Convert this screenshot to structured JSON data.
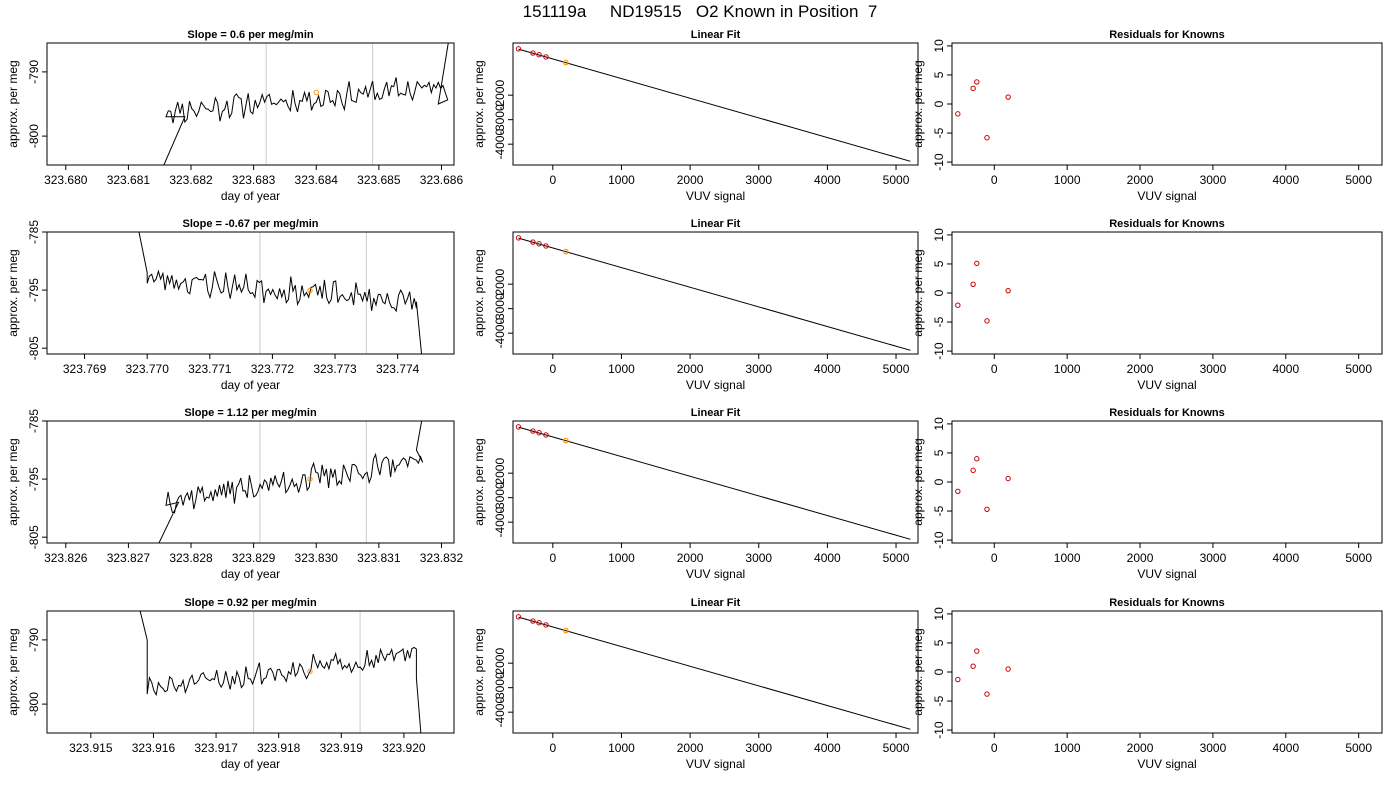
{
  "figure": {
    "title": "151119a     ND19515   O2 Known in Position  7",
    "colors": {
      "trace": "#000000",
      "axis": "#000000",
      "cycle_line": "#cccccc",
      "known_point": "#cc0000",
      "current_point": "#ff9900"
    }
  },
  "chart_data": [
    {
      "type": "line",
      "row": 0,
      "role": "time-series",
      "title": "Slope =  0.6  per meg/min",
      "xlabel": "day of year",
      "ylabel": "approx. per meg",
      "xlim": [
        323.6797,
        323.6862
      ],
      "ylim": [
        -804.5,
        -785.5
      ],
      "xticks": [
        323.68,
        323.681,
        323.682,
        323.683,
        323.684,
        323.685,
        323.686
      ],
      "xtick_labels": [
        "323.680",
        "323.681",
        "323.682",
        "323.683",
        "323.684",
        "323.685",
        "323.686"
      ],
      "yticks": [
        -790,
        -800
      ],
      "ytick_labels": [
        "-790",
        "-800"
      ],
      "vlines": [
        323.6832,
        323.6849
      ],
      "highlight_point": {
        "x": 323.684,
        "y": -793.2
      },
      "trace": {
        "start": 323.6816,
        "end": 323.6861,
        "level": -794.2,
        "slope": 0.6,
        "amplitude": 1.6,
        "seed": 11,
        "head": [
          [
            323.6815,
            -806.0
          ],
          [
            323.6819,
            -797.0
          ]
        ],
        "tail": [
          [
            323.68595,
            -795.0
          ],
          [
            323.68615,
            -783.0
          ]
        ]
      }
    },
    {
      "type": "line",
      "row": 1,
      "role": "time-series",
      "title": "Slope =  -0.67  per meg/min",
      "xlabel": "day of year",
      "ylabel": "approx. per meg",
      "xlim": [
        323.7684,
        323.7749
      ],
      "ylim": [
        -806,
        -785
      ],
      "xticks": [
        323.769,
        323.77,
        323.771,
        323.772,
        323.773,
        323.774
      ],
      "xtick_labels": [
        "323.769",
        "323.770",
        "323.771",
        "323.772",
        "323.773",
        "323.774"
      ],
      "yticks": [
        -785,
        -795,
        -805
      ],
      "ytick_labels": [
        "-785",
        "-795",
        "-805"
      ],
      "vlines": [
        323.7718,
        323.7735
      ],
      "highlight_point": {
        "x": 323.7726,
        "y": -795.1
      },
      "trace": {
        "start": 323.77,
        "end": 323.7743,
        "level": -795.0,
        "slope": -0.67,
        "amplitude": 1.8,
        "seed": 23,
        "head": [
          [
            323.76985,
            -784.0
          ],
          [
            323.77,
            -792.0
          ]
        ],
        "tail": [
          [
            323.7743,
            -797.0
          ],
          [
            323.7744,
            -808.0
          ]
        ]
      }
    },
    {
      "type": "line",
      "row": 2,
      "role": "time-series",
      "title": "Slope =  1.12  per meg/min",
      "xlabel": "day of year",
      "ylabel": "approx. per meg",
      "xlim": [
        323.8257,
        323.8322
      ],
      "ylim": [
        -806,
        -785
      ],
      "xticks": [
        323.826,
        323.827,
        323.828,
        323.829,
        323.83,
        323.831,
        323.832
      ],
      "xtick_labels": [
        "323.826",
        "323.827",
        "323.828",
        "323.829",
        "323.830",
        "323.831",
        "323.832"
      ],
      "yticks": [
        -785,
        -795,
        -805
      ],
      "ytick_labels": [
        "-785",
        "-795",
        "-805"
      ],
      "vlines": [
        323.8291,
        323.8308
      ],
      "highlight_point": {
        "x": 323.8299,
        "y": -795.0
      },
      "trace": {
        "start": 323.8276,
        "end": 323.8317,
        "level": -795.3,
        "slope": 1.12,
        "amplitude": 1.8,
        "seed": 37,
        "head": [
          [
            323.8274,
            -808.0
          ],
          [
            323.8278,
            -799.0
          ]
        ],
        "tail": [
          [
            323.8316,
            -790.0
          ],
          [
            323.8317,
            -784.0
          ]
        ]
      }
    },
    {
      "type": "line",
      "row": 3,
      "role": "time-series",
      "title": "Slope =  0.92  per meg/min",
      "xlabel": "day of year",
      "ylabel": "approx. per meg",
      "xlim": [
        323.9143,
        323.9208
      ],
      "ylim": [
        -804.5,
        -785.5
      ],
      "xticks": [
        323.915,
        323.916,
        323.917,
        323.918,
        323.919,
        323.92
      ],
      "xtick_labels": [
        "323.915",
        "323.916",
        "323.917",
        "323.918",
        "323.919",
        "323.920"
      ],
      "yticks": [
        -790,
        -800
      ],
      "ytick_labels": [
        "-790",
        "-800"
      ],
      "vlines": [
        323.9176,
        323.9193
      ],
      "highlight_point": {
        "x": 323.9185,
        "y": -794.9
      },
      "trace": {
        "start": 323.9159,
        "end": 323.9202,
        "level": -794.9,
        "slope": 0.92,
        "amplitude": 1.4,
        "seed": 51,
        "head": [
          [
            323.91575,
            -784.0
          ],
          [
            323.9159,
            -790.0
          ]
        ],
        "tail": [
          [
            323.9202,
            -796.0
          ],
          [
            323.9203,
            -808.0
          ]
        ]
      }
    },
    {
      "type": "scatter",
      "row": 0,
      "role": "linear-fit",
      "title": "Linear Fit",
      "xlabel": "VUV signal",
      "ylabel": "approx. per meg",
      "xlim": [
        -580,
        5320
      ],
      "ylim": [
        -4850,
        130
      ],
      "xticks": [
        0,
        1000,
        2000,
        3000,
        4000,
        5000
      ],
      "xtick_labels": [
        "0",
        "1000",
        "2000",
        "3000",
        "4000",
        "5000"
      ],
      "yticks": [
        -2000,
        -3000,
        -4000
      ],
      "ytick_labels": [
        "-2000",
        "-3000",
        "-4000"
      ],
      "fit_line": {
        "x0": -500,
        "y0": -120,
        "x1": 5210,
        "y1": -4700
      },
      "points": [
        {
          "x": -500,
          "y": -110
        },
        {
          "x": -290,
          "y": -280
        },
        {
          "x": -200,
          "y": -350
        },
        {
          "x": -100,
          "y": -440
        }
      ],
      "current": {
        "x": 190,
        "y": -670
      }
    },
    {
      "type": "scatter",
      "row": 1,
      "role": "linear-fit",
      "title": "Linear Fit",
      "xlabel": "VUV signal",
      "ylabel": "approx. per meg",
      "xlim": [
        -580,
        5320
      ],
      "ylim": [
        -4850,
        130
      ],
      "xticks": [
        0,
        1000,
        2000,
        3000,
        4000,
        5000
      ],
      "xtick_labels": [
        "0",
        "1000",
        "2000",
        "3000",
        "4000",
        "5000"
      ],
      "yticks": [
        -2000,
        -3000,
        -4000
      ],
      "ytick_labels": [
        "-2000",
        "-3000",
        "-4000"
      ],
      "fit_line": {
        "x0": -500,
        "y0": -120,
        "x1": 5210,
        "y1": -4700
      },
      "points": [
        {
          "x": -500,
          "y": -110
        },
        {
          "x": -290,
          "y": -280
        },
        {
          "x": -200,
          "y": -350
        },
        {
          "x": -100,
          "y": -440
        }
      ],
      "current": {
        "x": 190,
        "y": -670
      }
    },
    {
      "type": "scatter",
      "row": 2,
      "role": "linear-fit",
      "title": "Linear Fit",
      "xlabel": "VUV signal",
      "ylabel": "approx. per meg",
      "xlim": [
        -580,
        5320
      ],
      "ylim": [
        -4850,
        130
      ],
      "xticks": [
        0,
        1000,
        2000,
        3000,
        4000,
        5000
      ],
      "xtick_labels": [
        "0",
        "1000",
        "2000",
        "3000",
        "4000",
        "5000"
      ],
      "yticks": [
        -2000,
        -3000,
        -4000
      ],
      "ytick_labels": [
        "-2000",
        "-3000",
        "-4000"
      ],
      "fit_line": {
        "x0": -500,
        "y0": -120,
        "x1": 5210,
        "y1": -4700
      },
      "points": [
        {
          "x": -500,
          "y": -110
        },
        {
          "x": -290,
          "y": -280
        },
        {
          "x": -200,
          "y": -350
        },
        {
          "x": -100,
          "y": -440
        }
      ],
      "current": {
        "x": 190,
        "y": -670
      }
    },
    {
      "type": "scatter",
      "row": 3,
      "role": "linear-fit",
      "title": "Linear Fit",
      "xlabel": "VUV signal",
      "ylabel": "approx. per meg",
      "xlim": [
        -580,
        5320
      ],
      "ylim": [
        -4850,
        130
      ],
      "xticks": [
        0,
        1000,
        2000,
        3000,
        4000,
        5000
      ],
      "xtick_labels": [
        "0",
        "1000",
        "2000",
        "3000",
        "4000",
        "5000"
      ],
      "yticks": [
        -2000,
        -3000,
        -4000
      ],
      "ytick_labels": [
        "-2000",
        "-3000",
        "-4000"
      ],
      "fit_line": {
        "x0": -500,
        "y0": -120,
        "x1": 5210,
        "y1": -4700
      },
      "points": [
        {
          "x": -500,
          "y": -110
        },
        {
          "x": -290,
          "y": -280
        },
        {
          "x": -200,
          "y": -350
        },
        {
          "x": -100,
          "y": -440
        }
      ],
      "current": {
        "x": 190,
        "y": -670
      }
    },
    {
      "type": "scatter",
      "row": 0,
      "role": "residuals",
      "title": "Residuals for Knowns",
      "xlabel": "VUV signal",
      "ylabel": "approx. per meg",
      "xlim": [
        -580,
        5320
      ],
      "ylim": [
        -10.5,
        10.5
      ],
      "xticks": [
        0,
        1000,
        2000,
        3000,
        4000,
        5000
      ],
      "xtick_labels": [
        "0",
        "1000",
        "2000",
        "3000",
        "4000",
        "5000"
      ],
      "yticks": [
        10,
        5,
        0,
        -5,
        -10
      ],
      "ytick_labels": [
        "10",
        "5",
        "0",
        "-5",
        "-10"
      ],
      "points": [
        {
          "x": -500,
          "y": -1.7
        },
        {
          "x": -290,
          "y": 2.7
        },
        {
          "x": -240,
          "y": 3.8
        },
        {
          "x": -100,
          "y": -5.8
        },
        {
          "x": 190,
          "y": 1.2
        }
      ]
    },
    {
      "type": "scatter",
      "row": 1,
      "role": "residuals",
      "title": "Residuals for Knowns",
      "xlabel": "VUV signal",
      "ylabel": "approx. per meg",
      "xlim": [
        -580,
        5320
      ],
      "ylim": [
        -10.5,
        10.5
      ],
      "xticks": [
        0,
        1000,
        2000,
        3000,
        4000,
        5000
      ],
      "xtick_labels": [
        "0",
        "1000",
        "2000",
        "3000",
        "4000",
        "5000"
      ],
      "yticks": [
        10,
        5,
        0,
        -5,
        -10
      ],
      "ytick_labels": [
        "10",
        "5",
        "0",
        "-5",
        "-10"
      ],
      "points": [
        {
          "x": -500,
          "y": -2.1
        },
        {
          "x": -290,
          "y": 1.5
        },
        {
          "x": -240,
          "y": 5.1
        },
        {
          "x": -100,
          "y": -4.8
        },
        {
          "x": 190,
          "y": 0.4
        }
      ]
    },
    {
      "type": "scatter",
      "row": 2,
      "role": "residuals",
      "title": "Residuals for Knowns",
      "xlabel": "VUV signal",
      "ylabel": "approx. per meg",
      "xlim": [
        -580,
        5320
      ],
      "ylim": [
        -10.5,
        10.5
      ],
      "xticks": [
        0,
        1000,
        2000,
        3000,
        4000,
        5000
      ],
      "xtick_labels": [
        "0",
        "1000",
        "2000",
        "3000",
        "4000",
        "5000"
      ],
      "yticks": [
        10,
        5,
        0,
        -5,
        -10
      ],
      "ytick_labels": [
        "10",
        "5",
        "0",
        "-5",
        "-10"
      ],
      "points": [
        {
          "x": -500,
          "y": -1.6
        },
        {
          "x": -290,
          "y": 2.0
        },
        {
          "x": -240,
          "y": 4.0
        },
        {
          "x": -100,
          "y": -4.7
        },
        {
          "x": 190,
          "y": 0.6
        }
      ]
    },
    {
      "type": "scatter",
      "row": 3,
      "role": "residuals",
      "title": "Residuals for Knowns",
      "xlabel": "VUV signal",
      "ylabel": "approx. per meg",
      "xlim": [
        -580,
        5320
      ],
      "ylim": [
        -10.5,
        10.5
      ],
      "xticks": [
        0,
        1000,
        2000,
        3000,
        4000,
        5000
      ],
      "xtick_labels": [
        "0",
        "1000",
        "2000",
        "3000",
        "4000",
        "5000"
      ],
      "yticks": [
        10,
        5,
        0,
        -5,
        -10
      ],
      "ytick_labels": [
        "10",
        "5",
        "0",
        "-5",
        "-10"
      ],
      "points": [
        {
          "x": -500,
          "y": -1.3
        },
        {
          "x": -290,
          "y": 1.0
        },
        {
          "x": -240,
          "y": 3.6
        },
        {
          "x": -100,
          "y": -3.8
        },
        {
          "x": 190,
          "y": 0.5
        }
      ]
    }
  ]
}
